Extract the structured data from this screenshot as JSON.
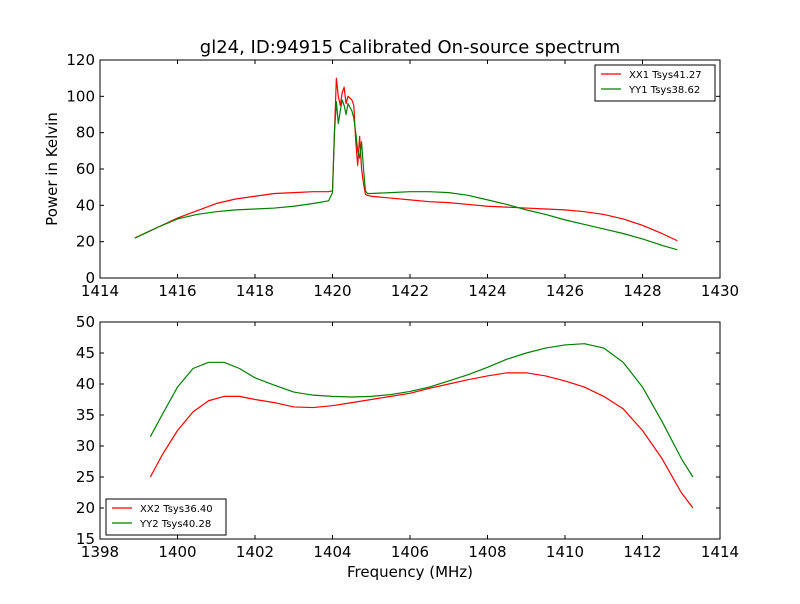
{
  "figure": {
    "title": "gl24, ID:94915 Calibrated On-source spectrum"
  },
  "chart_data": [
    {
      "type": "line",
      "title": "gl24, ID:94915 Calibrated On-source spectrum",
      "xlabel": "",
      "ylabel": "Power in Kelvin",
      "xlim": [
        1414,
        1430
      ],
      "ylim": [
        0,
        120
      ],
      "xticks": [
        "1414",
        "1416",
        "1418",
        "1420",
        "1422",
        "1424",
        "1426",
        "1428",
        "1430"
      ],
      "yticks": [
        "0",
        "20",
        "40",
        "60",
        "80",
        "100",
        "120"
      ],
      "grid": false,
      "legend_position": "upper right",
      "series": [
        {
          "name": "XX1 Tsys41.27",
          "color": "#ff0000",
          "x": [
            1414.9,
            1415.2,
            1415.5,
            1416.0,
            1416.5,
            1417.0,
            1417.5,
            1418.0,
            1418.5,
            1419.0,
            1419.5,
            1419.9,
            1420.0,
            1420.05,
            1420.1,
            1420.15,
            1420.2,
            1420.25,
            1420.3,
            1420.35,
            1420.4,
            1420.5,
            1420.55,
            1420.6,
            1420.65,
            1420.7,
            1420.75,
            1420.8,
            1420.85,
            1420.9,
            1421.0,
            1421.5,
            1422.0,
            1422.5,
            1423.0,
            1423.5,
            1424.0,
            1424.5,
            1425.0,
            1425.5,
            1426.0,
            1426.5,
            1427.0,
            1427.5,
            1428.0,
            1428.5,
            1428.9
          ],
          "y": [
            22,
            25,
            28,
            33,
            37,
            41,
            43.5,
            45,
            46.5,
            47,
            47.5,
            47.5,
            48,
            80,
            110,
            100,
            95,
            102,
            105,
            96,
            100,
            98,
            95,
            75,
            62,
            78,
            60,
            52,
            46,
            45.5,
            45,
            44,
            43,
            42,
            41.5,
            40.5,
            39.5,
            39,
            38.5,
            38,
            37.5,
            36.5,
            35,
            32.5,
            29,
            24.5,
            20.5
          ]
        },
        {
          "name": "YY1 Tsys38.62",
          "color": "#008000",
          "x": [
            1414.9,
            1415.2,
            1415.5,
            1416.0,
            1416.5,
            1417.0,
            1417.5,
            1418.0,
            1418.5,
            1419.0,
            1419.5,
            1419.9,
            1420.0,
            1420.05,
            1420.1,
            1420.15,
            1420.2,
            1420.25,
            1420.3,
            1420.35,
            1420.4,
            1420.5,
            1420.55,
            1420.6,
            1420.65,
            1420.7,
            1420.75,
            1420.8,
            1420.85,
            1420.9,
            1421.0,
            1421.5,
            1422.0,
            1422.5,
            1423.0,
            1423.5,
            1424.0,
            1424.5,
            1425.0,
            1425.5,
            1426.0,
            1426.5,
            1427.0,
            1427.5,
            1428.0,
            1428.5,
            1428.9
          ],
          "y": [
            22,
            25,
            28,
            32.5,
            35,
            36.5,
            37.5,
            38,
            38.5,
            39.5,
            41,
            42.5,
            47,
            80,
            97,
            85,
            92,
            98,
            95,
            90,
            96,
            92,
            88,
            80,
            70,
            66,
            75,
            60,
            48,
            46.5,
            46.5,
            47,
            47.5,
            47.5,
            47,
            45.5,
            43,
            40.5,
            37.5,
            35,
            32,
            29.5,
            27,
            24.5,
            21.5,
            18,
            15.5
          ]
        }
      ]
    },
    {
      "type": "line",
      "title": "",
      "xlabel": "Frequency (MHz)",
      "ylabel": "",
      "xlim": [
        1398,
        1414
      ],
      "ylim": [
        15,
        50
      ],
      "xticks": [
        "1398",
        "1400",
        "1402",
        "1404",
        "1406",
        "1408",
        "1410",
        "1412",
        "1414"
      ],
      "yticks": [
        "15",
        "20",
        "25",
        "30",
        "35",
        "40",
        "45",
        "50"
      ],
      "grid": false,
      "legend_position": "lower left",
      "series": [
        {
          "name": "XX2 Tsys36.40",
          "color": "#ff0000",
          "x": [
            1399.3,
            1399.6,
            1400.0,
            1400.4,
            1400.8,
            1401.2,
            1401.6,
            1402.0,
            1402.5,
            1403.0,
            1403.5,
            1404.0,
            1404.5,
            1405.0,
            1405.5,
            1406.0,
            1406.5,
            1407.0,
            1407.5,
            1408.0,
            1408.5,
            1409.0,
            1409.5,
            1410.0,
            1410.5,
            1411.0,
            1411.5,
            1412.0,
            1412.5,
            1413.0,
            1413.3
          ],
          "y": [
            25,
            28.5,
            32.5,
            35.5,
            37.3,
            38,
            38,
            37.5,
            37,
            36.3,
            36.2,
            36.5,
            37,
            37.5,
            38,
            38.5,
            39.3,
            40,
            40.7,
            41.3,
            41.8,
            41.8,
            41.3,
            40.5,
            39.5,
            38,
            36,
            32.5,
            28,
            22.5,
            20
          ]
        },
        {
          "name": "YY2 Tsys40.28",
          "color": "#008000",
          "x": [
            1399.3,
            1399.6,
            1400.0,
            1400.4,
            1400.8,
            1401.2,
            1401.6,
            1402.0,
            1402.5,
            1403.0,
            1403.5,
            1404.0,
            1404.5,
            1405.0,
            1405.5,
            1406.0,
            1406.5,
            1407.0,
            1407.5,
            1408.0,
            1408.5,
            1409.0,
            1409.5,
            1410.0,
            1410.5,
            1411.0,
            1411.5,
            1412.0,
            1412.5,
            1413.0,
            1413.3
          ],
          "y": [
            31.5,
            35,
            39.5,
            42.5,
            43.5,
            43.5,
            42.5,
            41,
            39.8,
            38.7,
            38.2,
            38,
            37.9,
            38,
            38.3,
            38.8,
            39.5,
            40.5,
            41.5,
            42.7,
            44,
            45,
            45.8,
            46.3,
            46.5,
            45.8,
            43.5,
            39.5,
            34,
            28,
            25
          ]
        }
      ]
    }
  ]
}
